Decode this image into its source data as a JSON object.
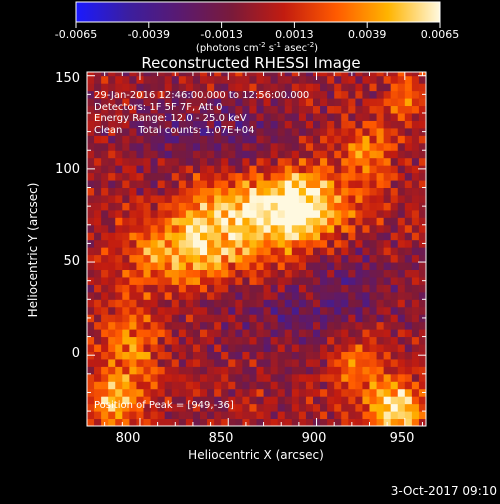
{
  "colorbar": {
    "ticks": [
      "-0.0065",
      "-0.0039",
      "-0.0013",
      "0.0013",
      "0.0039",
      "0.0065"
    ],
    "units_parts": [
      "(photons cm",
      "-2",
      " s",
      "-1",
      " asec",
      "-2",
      ")"
    ]
  },
  "plot": {
    "title": "Reconstructed RHESSI Image",
    "info_lines": [
      "29-Jan-2016 12:46:00.000 to 12:56:00.000",
      "Detectors: 1F 5F 7F, Att 0",
      "Energy Range: 12.0 - 25.0 keV",
      "Clean     Total counts: 1.07E+04"
    ],
    "peak_text": "Position of Peak = [949,-36]",
    "timestamp": "3-Oct-2017 09:10"
  },
  "chart_data": {
    "type": "heatmap",
    "title": "Reconstructed RHESSI Image",
    "xlabel": "Heliocentric X (arcsec)",
    "ylabel": "Heliocentric Y (arcsec)",
    "xlim": [
      770,
      962
    ],
    "ylim": [
      -38,
      152
    ],
    "xticks": [
      800,
      850,
      900,
      950
    ],
    "yticks": [
      0,
      50,
      100,
      150
    ],
    "x_tick_labels": [
      "800",
      "850",
      "900",
      "950"
    ],
    "y_tick_labels": [
      "0",
      "50",
      "100",
      "150"
    ],
    "color_range": [
      -0.0065,
      0.0065
    ],
    "colormap": [
      "#1a1aff",
      "#3b1ea0",
      "#5a1a70",
      "#7a1a3a",
      "#c21c10",
      "#ff5a00",
      "#ffb400",
      "#fff9e0"
    ],
    "peak_position": [
      949,
      -36
    ],
    "sources": [
      {
        "x": 890,
        "y": 80,
        "amp": 0.0068,
        "sx": 20,
        "sy": 14
      },
      {
        "x": 845,
        "y": 72,
        "amp": 0.0045,
        "sx": 28,
        "sy": 18
      },
      {
        "x": 820,
        "y": 52,
        "amp": 0.0033,
        "sx": 20,
        "sy": 12
      },
      {
        "x": 930,
        "y": 108,
        "amp": 0.0035,
        "sx": 10,
        "sy": 12
      },
      {
        "x": 952,
        "y": 138,
        "amp": 0.0028,
        "sx": 8,
        "sy": 8
      },
      {
        "x": 795,
        "y": 5,
        "amp": 0.0035,
        "sx": 12,
        "sy": 16
      },
      {
        "x": 785,
        "y": -25,
        "amp": 0.004,
        "sx": 12,
        "sy": 10
      },
      {
        "x": 945,
        "y": -28,
        "amp": 0.006,
        "sx": 12,
        "sy": 10
      },
      {
        "x": 925,
        "y": -5,
        "amp": 0.003,
        "sx": 12,
        "sy": 10
      },
      {
        "x": 860,
        "y": 115,
        "amp": -0.0022,
        "sx": 18,
        "sy": 14
      },
      {
        "x": 820,
        "y": 120,
        "amp": -0.002,
        "sx": 18,
        "sy": 14
      },
      {
        "x": 880,
        "y": 20,
        "amp": -0.0018,
        "sx": 30,
        "sy": 14
      },
      {
        "x": 920,
        "y": 40,
        "amp": -0.002,
        "sx": 18,
        "sy": 14
      },
      {
        "x": 810,
        "y": 85,
        "amp": -0.0015,
        "sx": 12,
        "sy": 12
      }
    ],
    "noise_amplitude": 0.0018
  }
}
